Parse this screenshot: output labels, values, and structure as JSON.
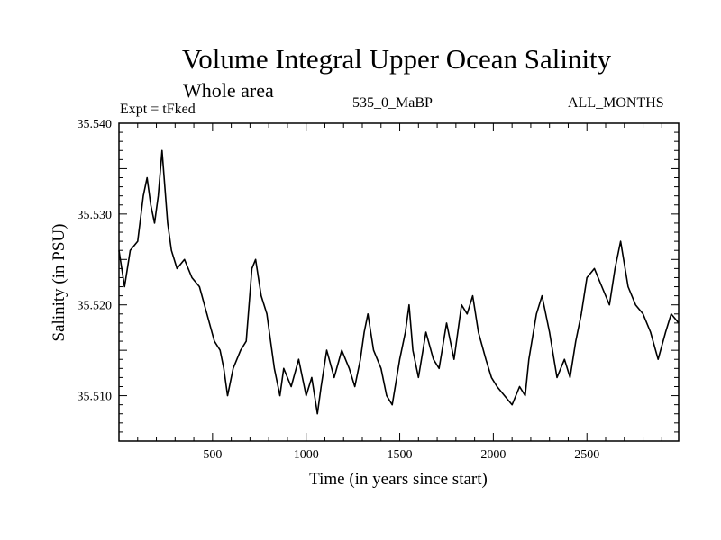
{
  "chart_data": {
    "type": "line",
    "title": "Volume Integral Upper Ocean Salinity",
    "subtitle": "Whole area",
    "left_label": "Expt = tFked",
    "center_label": "535_0_MaBP",
    "right_label": "ALL_MONTHS",
    "xlabel": "Time (in years since start)",
    "ylabel": "Salinity (in PSU)",
    "xlim": [
      0,
      2990
    ],
    "ylim": [
      35.505,
      35.54
    ],
    "xticks": [
      500,
      1000,
      1500,
      2000,
      2500
    ],
    "xtick_labels": [
      "500",
      "1000",
      "1500",
      "2000",
      "2500"
    ],
    "yticks": [
      35.51,
      35.52,
      35.53,
      35.54
    ],
    "ytick_labels": [
      "35.510",
      "35.520",
      "35.530",
      "35.540"
    ],
    "grid": false,
    "series": [
      {
        "x": [
          0,
          30,
          60,
          100,
          130,
          150,
          170,
          190,
          210,
          230,
          245,
          260,
          280,
          310,
          350,
          390,
          430,
          470,
          510,
          540,
          560,
          580,
          610,
          650,
          680,
          710,
          730,
          760,
          790,
          830,
          860,
          880,
          920,
          960,
          1000,
          1030,
          1060,
          1080,
          1110,
          1150,
          1190,
          1230,
          1260,
          1290,
          1310,
          1330,
          1360,
          1400,
          1430,
          1460,
          1500,
          1530,
          1550,
          1570,
          1600,
          1640,
          1680,
          1710,
          1750,
          1790,
          1830,
          1860,
          1890,
          1920,
          1960,
          1990,
          2020,
          2060,
          2100,
          2140,
          2170,
          2190,
          2230,
          2260,
          2300,
          2340,
          2380,
          2410,
          2440,
          2470,
          2500,
          2540,
          2580,
          2620,
          2650,
          2680,
          2720,
          2760,
          2800,
          2840,
          2880,
          2920,
          2950,
          2990
        ],
        "y": [
          35.526,
          35.522,
          35.526,
          35.527,
          35.532,
          35.534,
          35.531,
          35.529,
          35.532,
          35.537,
          35.533,
          35.529,
          35.526,
          35.524,
          35.525,
          35.523,
          35.522,
          35.519,
          35.516,
          35.515,
          35.513,
          35.51,
          35.513,
          35.515,
          35.516,
          35.524,
          35.525,
          35.521,
          35.519,
          35.513,
          35.51,
          35.513,
          35.511,
          35.514,
          35.51,
          35.512,
          35.508,
          35.511,
          35.515,
          35.512,
          35.515,
          35.513,
          35.511,
          35.514,
          35.517,
          35.519,
          35.515,
          35.513,
          35.51,
          35.509,
          35.514,
          35.517,
          35.52,
          35.515,
          35.512,
          35.517,
          35.514,
          35.513,
          35.518,
          35.514,
          35.52,
          35.519,
          35.521,
          35.517,
          35.514,
          35.512,
          35.511,
          35.51,
          35.509,
          35.511,
          35.51,
          35.514,
          35.519,
          35.521,
          35.517,
          35.512,
          35.514,
          35.512,
          35.516,
          35.519,
          35.523,
          35.524,
          35.522,
          35.52,
          35.524,
          35.527,
          35.522,
          35.52,
          35.519,
          35.517,
          35.514,
          35.517,
          35.519,
          35.518
        ]
      }
    ]
  }
}
